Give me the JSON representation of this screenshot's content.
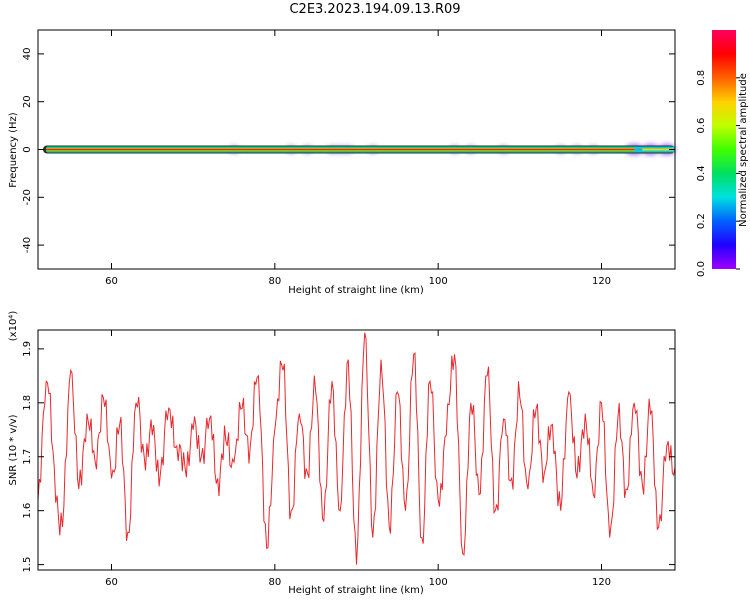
{
  "title": "C2E3.2023.194.09.13.R09",
  "colors": {
    "snr_line": "#e8282d",
    "background": "#ffffff",
    "axis": "#000000",
    "colorbar_stops": [
      "#a000ff",
      "#2000ff",
      "#0060ff",
      "#00e0e0",
      "#00e060",
      "#40ff00",
      "#c0ff00",
      "#ffd000",
      "#ff6000",
      "#ff0000",
      "#ff0060"
    ]
  },
  "chart_data": [
    {
      "type": "heatmap",
      "title": "",
      "xlabel": "Height of straight line (km)",
      "ylabel": "Frequency (Hz)",
      "xlim": [
        51,
        129
      ],
      "ylim": [
        -50,
        50
      ],
      "x_ticks": [
        60,
        80,
        100,
        120
      ],
      "y_ticks": [
        -40,
        -20,
        0,
        20,
        40
      ],
      "x_tick_labels": [
        "60",
        "80",
        "100",
        "120"
      ],
      "y_tick_labels": [
        "-40",
        "-20",
        "0",
        "20",
        "40"
      ],
      "colorbar": {
        "label": "Normalized spectral amplitude",
        "range": [
          0,
          1
        ],
        "ticks": [
          0.0,
          0.2,
          0.4,
          0.6,
          0.8
        ],
        "tick_labels": [
          "0.0",
          "0.2",
          "0.4",
          "0.6",
          "0.8"
        ]
      },
      "signal_band": {
        "frequency_hz": 0,
        "x_start": 51,
        "x_end": 129,
        "core_amplitude": 0.95
      },
      "scatter_blobs_x": [
        75,
        82,
        84,
        87,
        88,
        89,
        92,
        102,
        104,
        108,
        115,
        117,
        119,
        124,
        126,
        128
      ]
    },
    {
      "type": "line",
      "title": "",
      "xlabel": "Height of straight line (km)",
      "ylabel": "SNR (10 * v/v)",
      "yscale_label": "(x10⁴)",
      "xlim": [
        51,
        129
      ],
      "ylim": [
        1.49,
        1.935
      ],
      "x_ticks": [
        60,
        80,
        100,
        120
      ],
      "y_ticks": [
        1.5,
        1.6,
        1.7,
        1.8,
        1.9
      ],
      "x_tick_labels": [
        "60",
        "80",
        "100",
        "120"
      ],
      "y_tick_labels": [
        "1.5",
        "1.6",
        "1.7",
        "1.8",
        "1.9"
      ],
      "series": [
        {
          "x": [
            51,
            52,
            53,
            54,
            55,
            56,
            57,
            58,
            59,
            60,
            61,
            62,
            63,
            64,
            65,
            66,
            67,
            68,
            69,
            70,
            71,
            72,
            73,
            74,
            75,
            76,
            77,
            78,
            79,
            80,
            81,
            82,
            83,
            84,
            85,
            86,
            87,
            88,
            89,
            90,
            91,
            92,
            93,
            94,
            95,
            96,
            97,
            98,
            99,
            100,
            101,
            102,
            103,
            104,
            105,
            106,
            107,
            108,
            109,
            110,
            111,
            112,
            113,
            114,
            115,
            116,
            117,
            118,
            119,
            120,
            121,
            122,
            123,
            124,
            125,
            126,
            127,
            128,
            129
          ],
          "values": [
            1.62,
            1.84,
            1.68,
            1.57,
            1.86,
            1.64,
            1.78,
            1.69,
            1.81,
            1.66,
            1.76,
            1.56,
            1.8,
            1.7,
            1.74,
            1.67,
            1.79,
            1.72,
            1.68,
            1.75,
            1.7,
            1.77,
            1.66,
            1.73,
            1.69,
            1.79,
            1.72,
            1.85,
            1.53,
            1.75,
            1.86,
            1.6,
            1.78,
            1.67,
            1.82,
            1.58,
            1.84,
            1.6,
            1.88,
            1.5,
            1.93,
            1.55,
            1.88,
            1.57,
            1.82,
            1.6,
            1.89,
            1.55,
            1.84,
            1.62,
            1.74,
            1.89,
            1.52,
            1.8,
            1.63,
            1.85,
            1.6,
            1.77,
            1.66,
            1.81,
            1.64,
            1.79,
            1.67,
            1.76,
            1.6,
            1.82,
            1.66,
            1.78,
            1.63,
            1.8,
            1.55,
            1.77,
            1.64,
            1.8,
            1.65,
            1.78,
            1.57,
            1.72,
            1.68
          ]
        }
      ]
    }
  ]
}
